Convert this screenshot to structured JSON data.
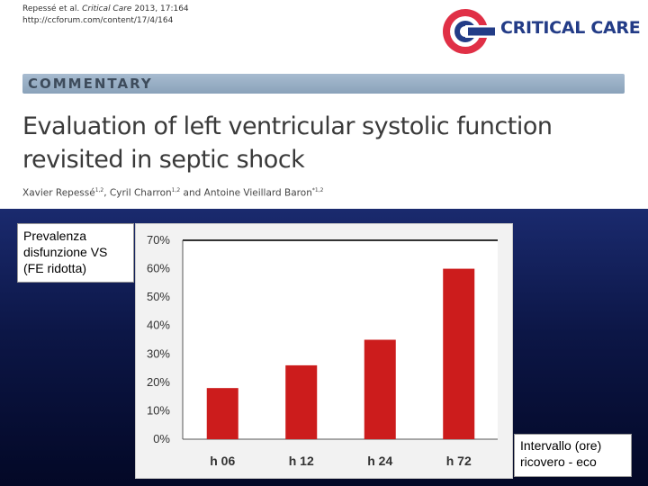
{
  "header": {
    "citation_line1_authors": "Repessé et al.",
    "citation_line1_journal": "Critical Care",
    "citation_line1_rest": "2013, 17:164",
    "citation_line2": "http://ccforum.com/content/17/4/164",
    "logo_text": "CRITICAL CARE",
    "section_label": "COMMENTARY",
    "title_line1": "Evaluation of left ventricular systolic function",
    "title_line2": "revisited in septic shock",
    "authors": {
      "a1": "Xavier Repessé",
      "a1_sup": "1,2",
      "a2": ", Cyril Charron",
      "a2_sup": "1,2",
      "a3": " and Antoine Vieillard Baron",
      "a3_sup": "*1,2"
    }
  },
  "ylabel_box": {
    "line1": "Prevalenza",
    "line2": "disfunzione VS",
    "line3": "(FE ridotta)"
  },
  "xlabel_box": {
    "line1": "Intervallo (ore)",
    "line2": "ricovero - eco"
  },
  "colors": {
    "bar": "#cc1c1c",
    "logo_red": "#e03046",
    "logo_navy": "#233c87",
    "band": "#93a9c0",
    "background_blue": "#0c1646"
  },
  "chart_data": {
    "type": "bar",
    "categories": [
      "h 06",
      "h 12",
      "h 24",
      "h 72"
    ],
    "values": [
      18,
      26,
      35,
      60
    ],
    "yticks": [
      "0%",
      "10%",
      "20%",
      "30%",
      "40%",
      "50%",
      "60%",
      "70%"
    ],
    "ylim": [
      0,
      70
    ],
    "grid": false
  }
}
